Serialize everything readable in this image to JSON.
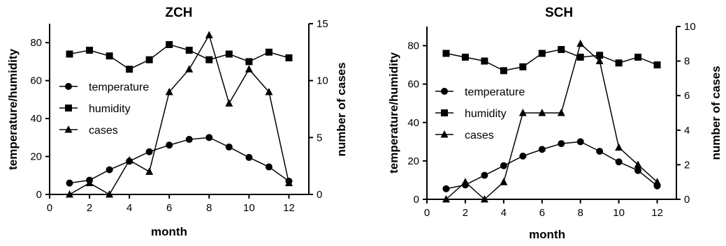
{
  "chart_data": [
    {
      "type": "line",
      "title": "ZCH",
      "xlabel": "month",
      "ylabel_left": "temperature/humidity",
      "ylabel_right": "number of cases",
      "x_ticks": [
        "0",
        "2",
        "4",
        "6",
        "8",
        "10",
        "12"
      ],
      "y_left_ticks": [
        "0",
        "20",
        "40",
        "60",
        "80"
      ],
      "y_right_ticks": [
        "0",
        "5",
        "10",
        "15"
      ],
      "xlim": [
        0,
        13
      ],
      "ylim_left": [
        0,
        90
      ],
      "ylim_right": [
        0,
        15
      ],
      "legend_position": "left",
      "x": [
        1,
        2,
        3,
        4,
        5,
        6,
        7,
        8,
        9,
        10,
        11,
        12
      ],
      "series": [
        {
          "name": "temperature",
          "marker": "circle",
          "axis": "left",
          "values": [
            6,
            7.5,
            13,
            17.5,
            22.5,
            26,
            29,
            30,
            25,
            19.5,
            14.5,
            7
          ]
        },
        {
          "name": "humidity",
          "marker": "square",
          "axis": "left",
          "values": [
            74,
            76,
            73,
            66,
            71,
            79,
            76,
            71,
            74,
            70,
            75,
            72
          ]
        },
        {
          "name": "cases",
          "marker": "triangle",
          "axis": "right",
          "values": [
            0,
            1,
            0,
            3,
            2,
            9,
            11,
            14,
            8,
            11,
            9,
            1
          ]
        }
      ]
    },
    {
      "type": "line",
      "title": "SCH",
      "xlabel": "month",
      "ylabel_left": "temperature/humidity",
      "ylabel_right": "number of cases",
      "x_ticks": [
        "0",
        "2",
        "4",
        "6",
        "8",
        "10",
        "12"
      ],
      "y_left_ticks": [
        "0",
        "20",
        "40",
        "60",
        "80"
      ],
      "y_right_ticks": [
        "0",
        "2",
        "4",
        "6",
        "8",
        "10"
      ],
      "xlim": [
        0,
        13
      ],
      "ylim_left": [
        0,
        90
      ],
      "ylim_right": [
        0,
        10
      ],
      "legend_position": "left",
      "x": [
        1,
        2,
        3,
        4,
        5,
        6,
        7,
        8,
        9,
        10,
        11,
        12
      ],
      "series": [
        {
          "name": "temperature",
          "marker": "circle",
          "axis": "left",
          "values": [
            5.5,
            7.5,
            12.5,
            17.5,
            22.5,
            26,
            29,
            30,
            25,
            19.5,
            15,
            7
          ]
        },
        {
          "name": "humidity",
          "marker": "square",
          "axis": "left",
          "values": [
            76,
            74,
            72,
            67,
            69,
            76,
            78,
            74,
            75,
            71,
            74,
            70
          ]
        },
        {
          "name": "cases",
          "marker": "triangle",
          "axis": "right",
          "values": [
            0,
            1,
            0,
            1,
            5,
            5,
            5,
            9,
            8,
            3,
            2,
            1
          ]
        }
      ]
    }
  ]
}
